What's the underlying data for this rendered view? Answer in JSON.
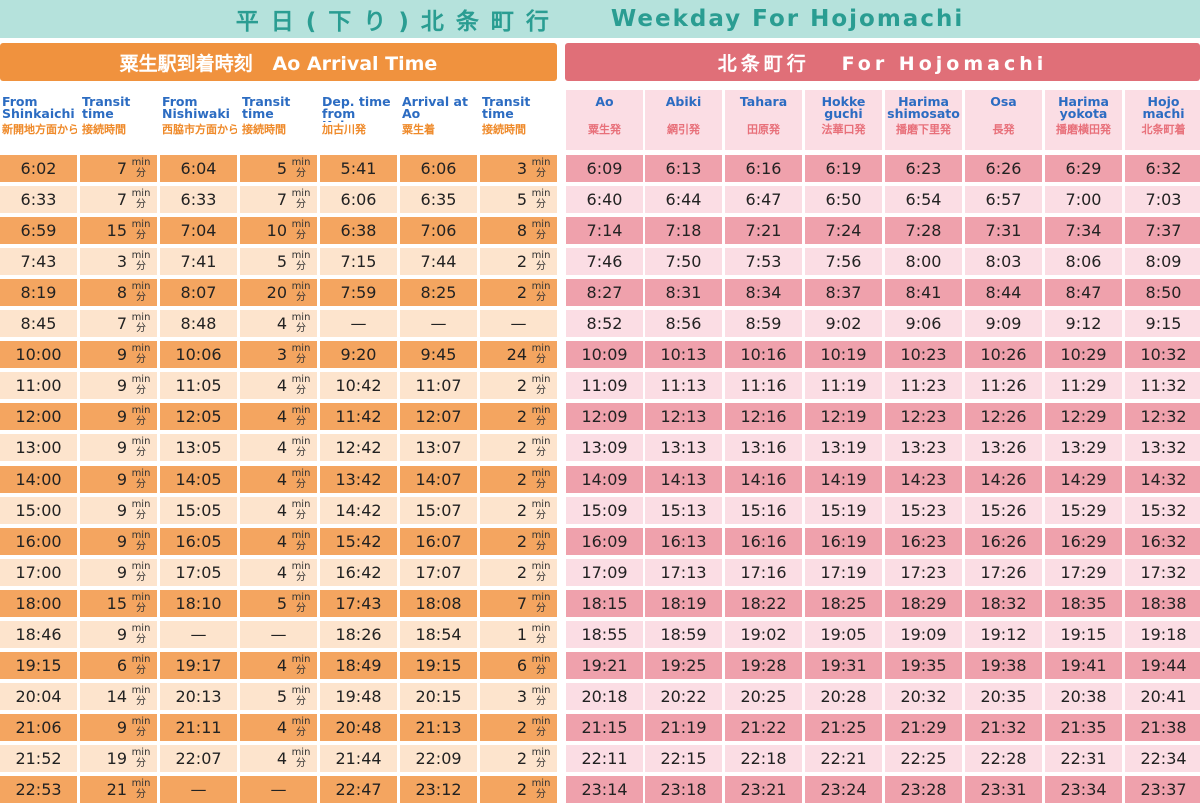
{
  "title": {
    "jp": "平 日 ( 下 り ) 北 条 町 行",
    "en": "Weekday For Hojomachi"
  },
  "left_section": {
    "title": "粟生駅到着時刻   Ao Arrival Time",
    "columns": [
      {
        "en": "From\nShinkaichi",
        "jp": "新開地方面から"
      },
      {
        "en": "Transit\ntime",
        "jp": "接続時間"
      },
      {
        "en": "From\nNishiwaki",
        "jp": "西脇市方面から"
      },
      {
        "en": "Transit\ntime",
        "jp": "接続時間"
      },
      {
        "en": "Dep. time\nfrom\nKakogawa",
        "jp": "加古川発"
      },
      {
        "en": "Arrival at\nAo",
        "jp": "粟生着"
      },
      {
        "en": "Transit\ntime",
        "jp": "接続時間"
      }
    ]
  },
  "right_section": {
    "title": "北条町行   For Hojomachi",
    "columns": [
      {
        "en": "Ao",
        "jp": "粟生発"
      },
      {
        "en": "Abiki",
        "jp": "網引発"
      },
      {
        "en": "Tahara",
        "jp": "田原発"
      },
      {
        "en": "Hokke\nguchi",
        "jp": "法華口発"
      },
      {
        "en": "Harima\nshimosato",
        "jp": "播磨下里発"
      },
      {
        "en": "Osa",
        "jp": "長発"
      },
      {
        "en": "Harima\nyokota",
        "jp": "播磨横田発"
      },
      {
        "en": "Hojo\nmachi",
        "jp": "北条町着"
      }
    ]
  },
  "unit": {
    "min": "min",
    "fun": "分"
  },
  "rows": [
    {
      "left": [
        "6:02",
        "7",
        "6:04",
        "5",
        "5:41",
        "6:06",
        "3"
      ],
      "right": [
        "6:09",
        "6:13",
        "6:16",
        "6:19",
        "6:23",
        "6:26",
        "6:29",
        "6:32"
      ]
    },
    {
      "left": [
        "6:33",
        "7",
        "6:33",
        "7",
        "6:06",
        "6:35",
        "5"
      ],
      "right": [
        "6:40",
        "6:44",
        "6:47",
        "6:50",
        "6:54",
        "6:57",
        "7:00",
        "7:03"
      ]
    },
    {
      "left": [
        "6:59",
        "15",
        "7:04",
        "10",
        "6:38",
        "7:06",
        "8"
      ],
      "right": [
        "7:14",
        "7:18",
        "7:21",
        "7:24",
        "7:28",
        "7:31",
        "7:34",
        "7:37"
      ]
    },
    {
      "left": [
        "7:43",
        "3",
        "7:41",
        "5",
        "7:15",
        "7:44",
        "2"
      ],
      "right": [
        "7:46",
        "7:50",
        "7:53",
        "7:56",
        "8:00",
        "8:03",
        "8:06",
        "8:09"
      ]
    },
    {
      "left": [
        "8:19",
        "8",
        "8:07",
        "20",
        "7:59",
        "8:25",
        "2"
      ],
      "right": [
        "8:27",
        "8:31",
        "8:34",
        "8:37",
        "8:41",
        "8:44",
        "8:47",
        "8:50"
      ]
    },
    {
      "left": [
        "8:45",
        "7",
        "8:48",
        "4",
        "—",
        "—",
        "—"
      ],
      "right": [
        "8:52",
        "8:56",
        "8:59",
        "9:02",
        "9:06",
        "9:09",
        "9:12",
        "9:15"
      ]
    },
    {
      "left": [
        "10:00",
        "9",
        "10:06",
        "3",
        "9:20",
        "9:45",
        "24"
      ],
      "right": [
        "10:09",
        "10:13",
        "10:16",
        "10:19",
        "10:23",
        "10:26",
        "10:29",
        "10:32"
      ]
    },
    {
      "left": [
        "11:00",
        "9",
        "11:05",
        "4",
        "10:42",
        "11:07",
        "2"
      ],
      "right": [
        "11:09",
        "11:13",
        "11:16",
        "11:19",
        "11:23",
        "11:26",
        "11:29",
        "11:32"
      ]
    },
    {
      "left": [
        "12:00",
        "9",
        "12:05",
        "4",
        "11:42",
        "12:07",
        "2"
      ],
      "right": [
        "12:09",
        "12:13",
        "12:16",
        "12:19",
        "12:23",
        "12:26",
        "12:29",
        "12:32"
      ]
    },
    {
      "left": [
        "13:00",
        "9",
        "13:05",
        "4",
        "12:42",
        "13:07",
        "2"
      ],
      "right": [
        "13:09",
        "13:13",
        "13:16",
        "13:19",
        "13:23",
        "13:26",
        "13:29",
        "13:32"
      ]
    },
    {
      "left": [
        "14:00",
        "9",
        "14:05",
        "4",
        "13:42",
        "14:07",
        "2"
      ],
      "right": [
        "14:09",
        "14:13",
        "14:16",
        "14:19",
        "14:23",
        "14:26",
        "14:29",
        "14:32"
      ]
    },
    {
      "left": [
        "15:00",
        "9",
        "15:05",
        "4",
        "14:42",
        "15:07",
        "2"
      ],
      "right": [
        "15:09",
        "15:13",
        "15:16",
        "15:19",
        "15:23",
        "15:26",
        "15:29",
        "15:32"
      ]
    },
    {
      "left": [
        "16:00",
        "9",
        "16:05",
        "4",
        "15:42",
        "16:07",
        "2"
      ],
      "right": [
        "16:09",
        "16:13",
        "16:16",
        "16:19",
        "16:23",
        "16:26",
        "16:29",
        "16:32"
      ]
    },
    {
      "left": [
        "17:00",
        "9",
        "17:05",
        "4",
        "16:42",
        "17:07",
        "2"
      ],
      "right": [
        "17:09",
        "17:13",
        "17:16",
        "17:19",
        "17:23",
        "17:26",
        "17:29",
        "17:32"
      ]
    },
    {
      "left": [
        "18:00",
        "15",
        "18:10",
        "5",
        "17:43",
        "18:08",
        "7"
      ],
      "right": [
        "18:15",
        "18:19",
        "18:22",
        "18:25",
        "18:29",
        "18:32",
        "18:35",
        "18:38"
      ]
    },
    {
      "left": [
        "18:46",
        "9",
        "—",
        "—",
        "18:26",
        "18:54",
        "1"
      ],
      "right": [
        "18:55",
        "18:59",
        "19:02",
        "19:05",
        "19:09",
        "19:12",
        "19:15",
        "19:18"
      ]
    },
    {
      "left": [
        "19:15",
        "6",
        "19:17",
        "4",
        "18:49",
        "19:15",
        "6"
      ],
      "right": [
        "19:21",
        "19:25",
        "19:28",
        "19:31",
        "19:35",
        "19:38",
        "19:41",
        "19:44"
      ]
    },
    {
      "left": [
        "20:04",
        "14",
        "20:13",
        "5",
        "19:48",
        "20:15",
        "3"
      ],
      "right": [
        "20:18",
        "20:22",
        "20:25",
        "20:28",
        "20:32",
        "20:35",
        "20:38",
        "20:41"
      ]
    },
    {
      "left": [
        "21:06",
        "9",
        "21:11",
        "4",
        "20:48",
        "21:13",
        "2"
      ],
      "right": [
        "21:15",
        "21:19",
        "21:22",
        "21:25",
        "21:29",
        "21:32",
        "21:35",
        "21:38"
      ]
    },
    {
      "left": [
        "21:52",
        "19",
        "22:07",
        "4",
        "21:44",
        "22:09",
        "2"
      ],
      "right": [
        "22:11",
        "22:15",
        "22:18",
        "22:21",
        "22:25",
        "22:28",
        "22:31",
        "22:34"
      ]
    },
    {
      "left": [
        "22:53",
        "21",
        "—",
        "—",
        "22:47",
        "23:12",
        "2"
      ],
      "right": [
        "23:14",
        "23:18",
        "23:21",
        "23:24",
        "23:28",
        "23:31",
        "23:34",
        "23:37"
      ]
    }
  ]
}
